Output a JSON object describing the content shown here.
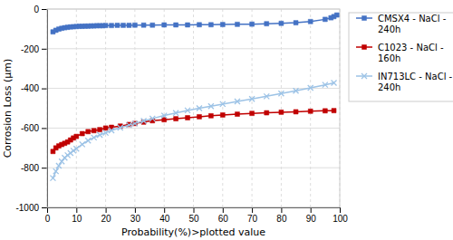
{
  "chart_data": {
    "type": "line",
    "xlabel": "Probability(%)>plotted value",
    "ylabel": "Corrosion Loss (μm)",
    "xlim": [
      0,
      100
    ],
    "ylim": [
      -1000,
      0
    ],
    "xticks": [
      0,
      10,
      20,
      30,
      40,
      50,
      60,
      70,
      80,
      90,
      100
    ],
    "yticks": [
      0,
      -200,
      -400,
      -600,
      -800,
      -1000
    ],
    "grid": true,
    "legend": "right",
    "series": [
      {
        "name": "CMSX4 - NaCl -\n240h",
        "color": "#4472c4",
        "marker": "square",
        "line_style": "solid",
        "x": [
          2,
          3,
          4,
          5,
          6,
          7,
          8,
          9,
          10,
          11,
          12,
          13,
          14,
          15,
          16,
          17,
          18,
          19,
          20,
          22,
          24,
          26,
          28,
          30,
          33,
          36,
          40,
          44,
          48,
          52,
          56,
          60,
          65,
          70,
          75,
          80,
          85,
          90,
          95,
          97,
          98,
          99
        ],
        "values": [
          -115,
          -107,
          -101,
          -97,
          -94,
          -92,
          -90,
          -89,
          -88,
          -87,
          -87,
          -86,
          -86,
          -85,
          -85,
          -84,
          -84,
          -84,
          -83,
          -83,
          -82,
          -82,
          -82,
          -81,
          -81,
          -81,
          -80,
          -80,
          -80,
          -79,
          -79,
          -78,
          -77,
          -76,
          -74,
          -72,
          -69,
          -63,
          -52,
          -44,
          -38,
          -30
        ]
      },
      {
        "name": "C1023 - NaCl -\n160h",
        "color": "#c00000",
        "marker": "square",
        "line_style": "solid",
        "x": [
          2,
          3,
          4,
          5,
          6,
          7,
          8,
          9,
          10,
          12,
          14,
          16,
          18,
          20,
          22,
          25,
          28,
          30,
          33,
          36,
          40,
          44,
          48,
          52,
          56,
          60,
          65,
          70,
          75,
          80,
          85,
          90,
          95,
          98
        ],
        "values": [
          -718,
          -700,
          -690,
          -683,
          -677,
          -670,
          -660,
          -650,
          -642,
          -628,
          -618,
          -613,
          -608,
          -600,
          -596,
          -590,
          -582,
          -577,
          -570,
          -563,
          -558,
          -553,
          -548,
          -543,
          -538,
          -534,
          -530,
          -526,
          -523,
          -520,
          -518,
          -515,
          -513,
          -512
        ]
      },
      {
        "name": "IN713LC - NaCl -\n240h",
        "color": "#9dc3e6",
        "marker": "x",
        "line_style": "solid",
        "x": [
          2,
          3,
          4,
          5,
          6,
          7,
          8,
          9,
          10,
          12,
          14,
          16,
          18,
          20,
          22,
          25,
          28,
          30,
          33,
          36,
          40,
          44,
          48,
          52,
          56,
          60,
          65,
          70,
          75,
          80,
          85,
          90,
          95,
          98
        ],
        "values": [
          -852,
          -818,
          -790,
          -768,
          -750,
          -737,
          -726,
          -714,
          -704,
          -682,
          -663,
          -648,
          -635,
          -624,
          -612,
          -598,
          -585,
          -577,
          -564,
          -552,
          -537,
          -524,
          -511,
          -500,
          -490,
          -479,
          -466,
          -453,
          -440,
          -426,
          -412,
          -397,
          -382,
          -372
        ]
      }
    ]
  }
}
